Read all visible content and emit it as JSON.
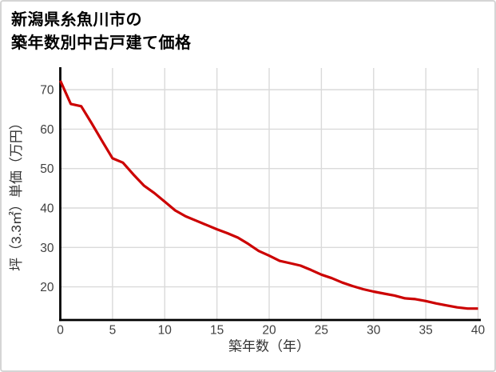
{
  "header": {
    "title_line1": "新潟県糸魚川市の",
    "title_line2": "築年数別中古戸建て価格"
  },
  "chart_data": {
    "type": "line",
    "title": "新潟県糸魚川市の築年数別中古戸建て価格",
    "xlabel": "築年数（年）",
    "ylabel": "坪（3.3㎡）単価（万円）",
    "x": [
      0,
      1,
      2,
      3,
      4,
      5,
      6,
      7,
      8,
      9,
      10,
      11,
      12,
      13,
      14,
      15,
      16,
      17,
      18,
      19,
      20,
      21,
      22,
      23,
      24,
      25,
      26,
      27,
      28,
      29,
      30,
      31,
      32,
      33,
      34,
      35,
      36,
      37,
      38,
      39,
      40
    ],
    "y": [
      72.3,
      66.4,
      65.8,
      61.5,
      57.0,
      52.6,
      51.5,
      48.5,
      45.7,
      43.8,
      41.6,
      39.4,
      37.9,
      36.8,
      35.7,
      34.6,
      33.6,
      32.5,
      30.9,
      29.1,
      27.9,
      26.6,
      26.0,
      25.4,
      24.3,
      23.1,
      22.2,
      21.1,
      20.2,
      19.4,
      18.8,
      18.3,
      17.8,
      17.1,
      16.9,
      16.4,
      15.8,
      15.3,
      14.8,
      14.5,
      14.5
    ],
    "xlim": [
      0,
      40
    ],
    "ylim": [
      11.6,
      75.5
    ],
    "x_ticks": [
      0,
      5,
      10,
      15,
      20,
      25,
      30,
      35,
      40
    ],
    "y_ticks": [
      20,
      30,
      40,
      50,
      60,
      70
    ],
    "grid": true,
    "legend": false,
    "line_color": "#cc0000",
    "grid_color": "#dadada",
    "axis_color": "#000000",
    "tick_label_color": "#404040",
    "axis_label_color": "#333333"
  }
}
